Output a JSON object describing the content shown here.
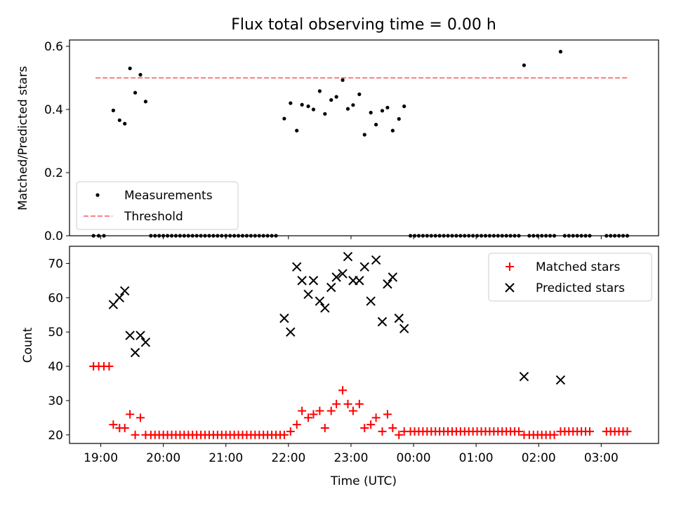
{
  "chart_data": [
    {
      "type": "scatter",
      "title": "Flux total observing time = 0.00 h",
      "ylabel": "Matched/Predicted stars",
      "xlabel": "",
      "ylim": [
        0,
        0.62
      ],
      "yticks": [
        0.0,
        0.2,
        0.4,
        0.6
      ],
      "ytick_labels": [
        "0.0",
        "0.2",
        "0.4",
        "0.6"
      ],
      "x_range_hours": [
        "18:30",
        "03:55"
      ],
      "legend_position": "lower-left",
      "legend": [
        "Measurements",
        "Threshold"
      ],
      "threshold": {
        "name": "Threshold",
        "value": 0.5,
        "x_start": "18:55",
        "x_end": "03:25",
        "color": "#ff7f7f",
        "style": "dashed"
      },
      "series": [
        {
          "name": "Measurements",
          "color": "#000000",
          "marker": "dot",
          "points": [
            [
              "18:53",
              0
            ],
            [
              "18:58",
              0
            ],
            [
              "19:03",
              0
            ],
            [
              "19:12",
              0.397
            ],
            [
              "19:18",
              0.366
            ],
            [
              "19:23",
              0.355
            ],
            [
              "19:28",
              0.53
            ],
            [
              "19:33",
              0.453
            ],
            [
              "19:38",
              0.51
            ],
            [
              "19:43",
              0.425
            ],
            [
              "19:48",
              0
            ],
            [
              "19:52",
              0
            ],
            [
              "19:56",
              0
            ],
            [
              "20:00",
              0
            ],
            [
              "20:04",
              0
            ],
            [
              "20:08",
              0
            ],
            [
              "20:12",
              0
            ],
            [
              "20:16",
              0
            ],
            [
              "20:20",
              0
            ],
            [
              "20:24",
              0
            ],
            [
              "20:28",
              0
            ],
            [
              "20:32",
              0
            ],
            [
              "20:36",
              0
            ],
            [
              "20:40",
              0
            ],
            [
              "20:44",
              0
            ],
            [
              "20:48",
              0
            ],
            [
              "20:52",
              0
            ],
            [
              "20:56",
              0
            ],
            [
              "21:00",
              0
            ],
            [
              "21:04",
              0
            ],
            [
              "21:08",
              0
            ],
            [
              "21:12",
              0
            ],
            [
              "21:16",
              0
            ],
            [
              "21:20",
              0
            ],
            [
              "21:24",
              0
            ],
            [
              "21:28",
              0
            ],
            [
              "21:32",
              0
            ],
            [
              "21:36",
              0
            ],
            [
              "21:40",
              0
            ],
            [
              "21:44",
              0
            ],
            [
              "21:48",
              0
            ],
            [
              "21:56",
              0.371
            ],
            [
              "22:02",
              0.42
            ],
            [
              "22:08",
              0.333
            ],
            [
              "22:13",
              0.415
            ],
            [
              "22:19",
              0.41
            ],
            [
              "22:24",
              0.4
            ],
            [
              "22:30",
              0.458
            ],
            [
              "22:35",
              0.386
            ],
            [
              "22:41",
              0.43
            ],
            [
              "22:46",
              0.44
            ],
            [
              "22:52",
              0.493
            ],
            [
              "22:57",
              0.402
            ],
            [
              "23:02",
              0.414
            ],
            [
              "23:08",
              0.448
            ],
            [
              "23:13",
              0.32
            ],
            [
              "23:19",
              0.39
            ],
            [
              "23:24",
              0.352
            ],
            [
              "23:30",
              0.396
            ],
            [
              "23:35",
              0.406
            ],
            [
              "23:40",
              0.333
            ],
            [
              "23:46",
              0.37
            ],
            [
              "23:51",
              0.41
            ],
            [
              "23:57",
              0
            ],
            [
              "00:01",
              0
            ],
            [
              "00:05",
              0
            ],
            [
              "00:09",
              0
            ],
            [
              "00:13",
              0
            ],
            [
              "00:17",
              0
            ],
            [
              "00:21",
              0
            ],
            [
              "00:25",
              0
            ],
            [
              "00:29",
              0
            ],
            [
              "00:33",
              0
            ],
            [
              "00:37",
              0
            ],
            [
              "00:41",
              0
            ],
            [
              "00:45",
              0
            ],
            [
              "00:49",
              0
            ],
            [
              "00:53",
              0
            ],
            [
              "00:57",
              0
            ],
            [
              "01:01",
              0
            ],
            [
              "01:05",
              0
            ],
            [
              "01:09",
              0
            ],
            [
              "01:13",
              0
            ],
            [
              "01:17",
              0
            ],
            [
              "01:21",
              0
            ],
            [
              "01:25",
              0
            ],
            [
              "01:29",
              0
            ],
            [
              "01:33",
              0
            ],
            [
              "01:37",
              0
            ],
            [
              "01:41",
              0
            ],
            [
              "01:46",
              0.54
            ],
            [
              "01:51",
              0
            ],
            [
              "01:55",
              0
            ],
            [
              "01:59",
              0
            ],
            [
              "02:03",
              0
            ],
            [
              "02:07",
              0
            ],
            [
              "02:11",
              0
            ],
            [
              "02:15",
              0
            ],
            [
              "02:21",
              0.583
            ],
            [
              "02:25",
              0
            ],
            [
              "02:29",
              0
            ],
            [
              "02:33",
              0
            ],
            [
              "02:37",
              0
            ],
            [
              "02:41",
              0
            ],
            [
              "02:45",
              0
            ],
            [
              "02:49",
              0
            ],
            [
              "03:05",
              0
            ],
            [
              "03:09",
              0
            ],
            [
              "03:13",
              0
            ],
            [
              "03:17",
              0
            ],
            [
              "03:21",
              0
            ],
            [
              "03:25",
              0
            ]
          ]
        }
      ]
    },
    {
      "type": "scatter",
      "title": "",
      "xlabel": "Time (UTC)",
      "ylabel": "Count",
      "ylim": [
        17.5,
        75
      ],
      "yticks": [
        20,
        30,
        40,
        50,
        60,
        70
      ],
      "ytick_labels": [
        "20",
        "30",
        "40",
        "50",
        "60",
        "70"
      ],
      "xticks": [
        "19:00",
        "20:00",
        "21:00",
        "22:00",
        "23:00",
        "00:00",
        "01:00",
        "02:00",
        "03:00"
      ],
      "xtick_labels": [
        "19:00",
        "20:00",
        "21:00",
        "22:00",
        "23:00",
        "00:00",
        "01:00",
        "02:00",
        "03:00"
      ],
      "legend_position": "top-right",
      "legend": [
        "Matched stars",
        "Predicted stars"
      ],
      "series": [
        {
          "name": "Matched stars",
          "color": "#ff0000",
          "marker": "plus",
          "points": [
            [
              "18:53",
              40
            ],
            [
              "18:58",
              40
            ],
            [
              "19:03",
              40
            ],
            [
              "19:08",
              40
            ],
            [
              "19:12",
              23
            ],
            [
              "19:18",
              22
            ],
            [
              "19:23",
              22
            ],
            [
              "19:28",
              26
            ],
            [
              "19:33",
              20
            ],
            [
              "19:38",
              25
            ],
            [
              "19:43",
              20
            ],
            [
              "19:48",
              20
            ],
            [
              "19:52",
              20
            ],
            [
              "19:56",
              20
            ],
            [
              "20:00",
              20
            ],
            [
              "20:04",
              20
            ],
            [
              "20:08",
              20
            ],
            [
              "20:12",
              20
            ],
            [
              "20:16",
              20
            ],
            [
              "20:20",
              20
            ],
            [
              "20:24",
              20
            ],
            [
              "20:28",
              20
            ],
            [
              "20:32",
              20
            ],
            [
              "20:36",
              20
            ],
            [
              "20:40",
              20
            ],
            [
              "20:44",
              20
            ],
            [
              "20:48",
              20
            ],
            [
              "20:52",
              20
            ],
            [
              "20:56",
              20
            ],
            [
              "21:00",
              20
            ],
            [
              "21:04",
              20
            ],
            [
              "21:08",
              20
            ],
            [
              "21:12",
              20
            ],
            [
              "21:16",
              20
            ],
            [
              "21:20",
              20
            ],
            [
              "21:24",
              20
            ],
            [
              "21:28",
              20
            ],
            [
              "21:32",
              20
            ],
            [
              "21:36",
              20
            ],
            [
              "21:40",
              20
            ],
            [
              "21:44",
              20
            ],
            [
              "21:48",
              20
            ],
            [
              "21:52",
              20
            ],
            [
              "21:56",
              20
            ],
            [
              "22:02",
              21
            ],
            [
              "22:08",
              23
            ],
            [
              "22:13",
              27
            ],
            [
              "22:19",
              25
            ],
            [
              "22:24",
              26
            ],
            [
              "22:30",
              27
            ],
            [
              "22:35",
              22
            ],
            [
              "22:41",
              27
            ],
            [
              "22:46",
              29
            ],
            [
              "22:52",
              33
            ],
            [
              "22:57",
              29
            ],
            [
              "23:02",
              27
            ],
            [
              "23:08",
              29
            ],
            [
              "23:13",
              22
            ],
            [
              "23:19",
              23
            ],
            [
              "23:24",
              25
            ],
            [
              "23:30",
              21
            ],
            [
              "23:35",
              26
            ],
            [
              "23:40",
              22
            ],
            [
              "23:46",
              20
            ],
            [
              "23:51",
              21
            ],
            [
              "23:57",
              21
            ],
            [
              "00:01",
              21
            ],
            [
              "00:05",
              21
            ],
            [
              "00:09",
              21
            ],
            [
              "00:13",
              21
            ],
            [
              "00:17",
              21
            ],
            [
              "00:21",
              21
            ],
            [
              "00:25",
              21
            ],
            [
              "00:29",
              21
            ],
            [
              "00:33",
              21
            ],
            [
              "00:37",
              21
            ],
            [
              "00:41",
              21
            ],
            [
              "00:45",
              21
            ],
            [
              "00:49",
              21
            ],
            [
              "00:53",
              21
            ],
            [
              "00:57",
              21
            ],
            [
              "01:01",
              21
            ],
            [
              "01:05",
              21
            ],
            [
              "01:09",
              21
            ],
            [
              "01:13",
              21
            ],
            [
              "01:17",
              21
            ],
            [
              "01:21",
              21
            ],
            [
              "01:25",
              21
            ],
            [
              "01:29",
              21
            ],
            [
              "01:33",
              21
            ],
            [
              "01:37",
              21
            ],
            [
              "01:41",
              21
            ],
            [
              "01:46",
              20
            ],
            [
              "01:51",
              20
            ],
            [
              "01:55",
              20
            ],
            [
              "01:59",
              20
            ],
            [
              "02:03",
              20
            ],
            [
              "02:07",
              20
            ],
            [
              "02:11",
              20
            ],
            [
              "02:15",
              20
            ],
            [
              "02:21",
              21
            ],
            [
              "02:25",
              21
            ],
            [
              "02:29",
              21
            ],
            [
              "02:33",
              21
            ],
            [
              "02:37",
              21
            ],
            [
              "02:41",
              21
            ],
            [
              "02:45",
              21
            ],
            [
              "02:49",
              21
            ],
            [
              "03:05",
              21
            ],
            [
              "03:09",
              21
            ],
            [
              "03:13",
              21
            ],
            [
              "03:17",
              21
            ],
            [
              "03:21",
              21
            ],
            [
              "03:25",
              21
            ]
          ]
        },
        {
          "name": "Predicted stars",
          "color": "#000000",
          "marker": "x",
          "points": [
            [
              "19:12",
              58
            ],
            [
              "19:18",
              60
            ],
            [
              "19:23",
              62
            ],
            [
              "19:28",
              49
            ],
            [
              "19:33",
              44
            ],
            [
              "19:38",
              49
            ],
            [
              "19:43",
              47
            ],
            [
              "21:56",
              54
            ],
            [
              "22:02",
              50
            ],
            [
              "22:08",
              69
            ],
            [
              "22:13",
              65
            ],
            [
              "22:19",
              61
            ],
            [
              "22:24",
              65
            ],
            [
              "22:30",
              59
            ],
            [
              "22:35",
              57
            ],
            [
              "22:41",
              63
            ],
            [
              "22:46",
              66
            ],
            [
              "22:52",
              67
            ],
            [
              "22:57",
              72
            ],
            [
              "23:02",
              65
            ],
            [
              "23:08",
              65
            ],
            [
              "23:13",
              69
            ],
            [
              "23:19",
              59
            ],
            [
              "23:24",
              71
            ],
            [
              "23:30",
              53
            ],
            [
              "23:35",
              64
            ],
            [
              "23:40",
              66
            ],
            [
              "23:46",
              54
            ],
            [
              "23:51",
              51
            ],
            [
              "01:46",
              37
            ],
            [
              "02:21",
              36
            ]
          ]
        }
      ]
    }
  ]
}
